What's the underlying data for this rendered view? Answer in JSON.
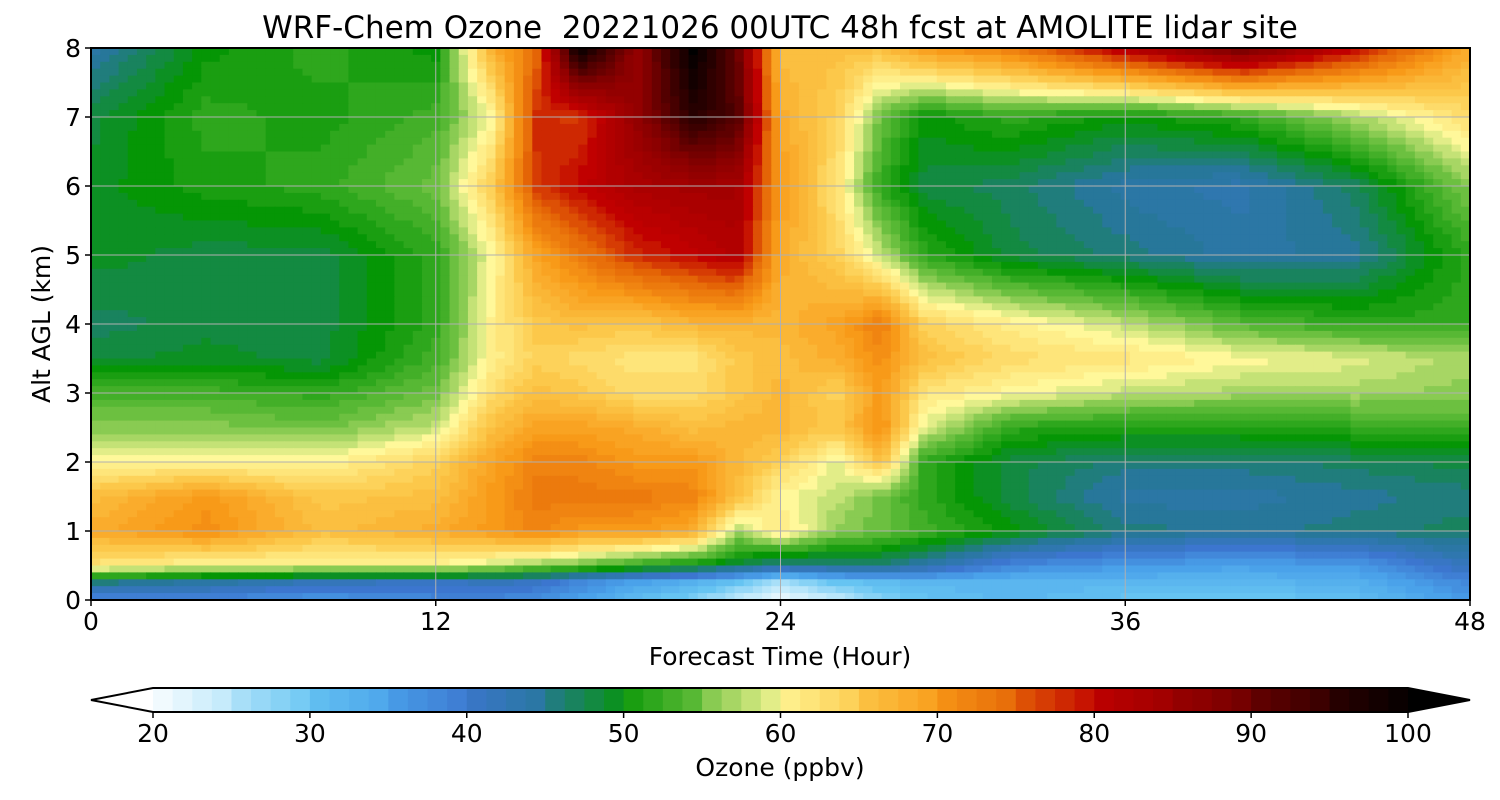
{
  "chart_data": {
    "type": "heatmap",
    "title": "WRF-Chem Ozone  20221026 00UTC 48h fcst at AMOLITE lidar site",
    "xlabel": "Forecast Time (Hour)",
    "ylabel": "Alt AGL (km)",
    "xlim": [
      0,
      48
    ],
    "ylim": [
      0,
      8
    ],
    "xticks": [
      "0",
      "12",
      "24",
      "36",
      "48"
    ],
    "yticks": [
      "0",
      "1",
      "2",
      "3",
      "4",
      "5",
      "6",
      "7",
      "8"
    ],
    "grid": true,
    "x": [
      0,
      4,
      8,
      12,
      14,
      15.5,
      17,
      19,
      21,
      22.5,
      24,
      26,
      27.5,
      29,
      32,
      36,
      40,
      44,
      48
    ],
    "y": [
      0,
      0.25,
      0.5,
      1,
      1.5,
      2,
      2.5,
      3,
      3.5,
      4,
      5,
      6,
      7,
      8
    ],
    "z": [
      [
        37,
        38,
        36,
        38,
        38,
        37,
        35,
        31,
        28,
        24,
        21,
        24,
        28,
        30,
        32,
        30,
        29,
        31,
        36
      ],
      [
        46,
        44,
        42,
        41,
        42,
        41,
        38,
        35,
        33,
        30,
        26,
        30,
        31,
        32,
        32,
        32,
        32,
        33,
        38
      ],
      [
        62,
        60,
        60,
        60,
        58,
        56,
        55,
        52,
        50,
        48,
        45,
        46,
        46,
        44,
        38,
        36,
        35,
        36,
        42
      ],
      [
        68,
        71,
        66,
        68,
        70,
        72,
        70,
        70,
        68,
        57,
        62,
        56,
        55,
        53,
        50,
        46,
        45,
        46,
        47
      ],
      [
        66,
        70,
        65,
        66,
        70,
        73,
        73,
        73,
        72,
        66,
        60,
        58,
        55,
        52,
        48,
        44,
        44,
        45,
        46
      ],
      [
        60,
        60,
        60,
        64,
        69,
        72,
        72,
        70,
        70,
        67,
        64,
        59,
        66,
        52,
        48,
        46,
        46,
        47,
        48
      ],
      [
        56,
        56,
        55,
        58,
        66,
        69,
        69,
        68,
        66,
        67,
        67,
        65,
        71,
        59,
        52,
        51,
        51,
        52,
        53
      ],
      [
        53,
        53,
        52,
        55,
        63,
        66,
        65,
        63,
        63,
        65,
        67,
        64,
        70,
        62,
        60,
        58,
        57,
        57,
        56
      ],
      [
        48,
        49,
        48,
        53,
        61,
        64,
        63,
        62,
        62,
        65,
        66,
        68,
        71,
        66,
        63,
        62,
        60,
        59,
        57
      ],
      [
        47,
        48,
        48,
        52,
        61,
        65,
        66,
        65,
        67,
        67,
        67,
        69,
        73,
        64,
        61,
        58,
        54,
        52,
        52
      ],
      [
        49,
        48,
        48,
        52,
        60,
        69,
        73,
        78,
        80,
        82,
        68,
        64,
        58,
        52,
        48,
        46,
        44,
        45,
        52
      ],
      [
        49,
        51,
        52,
        55,
        65,
        77,
        80,
        83,
        84,
        84,
        70,
        62,
        52,
        48,
        47,
        44,
        43,
        47,
        56
      ],
      [
        48,
        52,
        51,
        53,
        60,
        78,
        77,
        86,
        96,
        92,
        68,
        64,
        55,
        50,
        52,
        50,
        52,
        57,
        63
      ],
      [
        44,
        50,
        52,
        50,
        68,
        74,
        100,
        86,
        100,
        90,
        66,
        66,
        66,
        70,
        73,
        82,
        90,
        80,
        68
      ]
    ],
    "colorbar": {
      "label": "Ozone  (ppbv)",
      "min": 20,
      "max": 100,
      "ticks": [
        "20",
        "30",
        "40",
        "50",
        "60",
        "70",
        "80",
        "90",
        "100"
      ],
      "colorstops": [
        [
          20,
          "#ffffff"
        ],
        [
          25,
          "#b8e6fa"
        ],
        [
          30,
          "#66c4f2"
        ],
        [
          35,
          "#4aa2ea"
        ],
        [
          40,
          "#3c76cf"
        ],
        [
          45,
          "#27779a"
        ],
        [
          50,
          "#059605"
        ],
        [
          55,
          "#6cc040"
        ],
        [
          60,
          "#fff89a"
        ],
        [
          65,
          "#fcc84a"
        ],
        [
          70,
          "#f89a18"
        ],
        [
          75,
          "#e46406"
        ],
        [
          80,
          "#c00000"
        ],
        [
          87,
          "#8c0000"
        ],
        [
          95,
          "#300000"
        ],
        [
          100,
          "#000000"
        ]
      ]
    }
  }
}
